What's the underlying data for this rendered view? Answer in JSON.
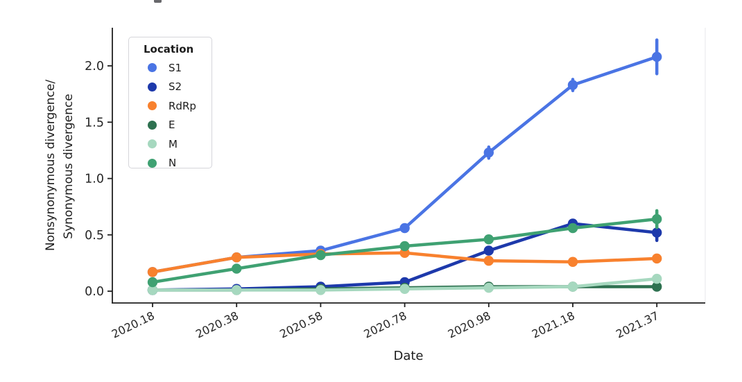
{
  "chart_data": {
    "type": "line",
    "title": "",
    "xlabel": "Date",
    "ylabel_lines": [
      "Nonsynonymous divergence/",
      "Synonymous divergence"
    ],
    "legend_title": "Location",
    "legend_position": "upper left",
    "grid": false,
    "x_tick_labels": [
      "2020.18",
      "2020.38",
      "2020.58",
      "2020.78",
      "2020.98",
      "2021.18",
      "2021.37"
    ],
    "x_tick_rotation_deg": 26,
    "y_tick_labels": [
      "0.0",
      "0.5",
      "1.0",
      "1.5",
      "2.0"
    ],
    "ylim": [
      -0.11,
      2.34
    ],
    "marker": "circle",
    "series": [
      {
        "name": "S1",
        "color": "#4a74e4",
        "values": [
          0.17,
          0.3,
          0.36,
          0.56,
          1.23,
          1.83,
          2.08
        ],
        "errors": [
          null,
          null,
          null,
          null,
          0.05,
          0.05,
          0.15
        ]
      },
      {
        "name": "S2",
        "color": "#1d39ab",
        "values": [
          0.01,
          0.02,
          0.04,
          0.08,
          0.36,
          0.6,
          0.52
        ],
        "errors": [
          null,
          null,
          null,
          null,
          null,
          null,
          0.07
        ]
      },
      {
        "name": "RdRp",
        "color": "#f8812e",
        "values": [
          0.17,
          0.3,
          0.33,
          0.34,
          0.27,
          0.26,
          0.29
        ],
        "errors": [
          null,
          null,
          null,
          null,
          null,
          null,
          null
        ]
      },
      {
        "name": "E",
        "color": "#2e7150",
        "values": [
          0.01,
          0.01,
          0.02,
          0.03,
          0.04,
          0.04,
          0.04
        ],
        "errors": [
          null,
          null,
          null,
          null,
          null,
          null,
          null
        ]
      },
      {
        "name": "M",
        "color": "#a6d8bf",
        "values": [
          0.01,
          0.01,
          0.01,
          0.02,
          0.03,
          0.04,
          0.11
        ],
        "errors": [
          null,
          null,
          null,
          null,
          null,
          null,
          null
        ]
      },
      {
        "name": "N",
        "color": "#3fa172",
        "values": [
          0.08,
          0.2,
          0.32,
          0.4,
          0.46,
          0.56,
          0.64
        ],
        "errors": [
          null,
          null,
          null,
          null,
          null,
          null,
          0.075
        ]
      }
    ],
    "colors": {
      "axis_spine": "#1f1f1f",
      "faint_spine": "#ebebee",
      "tick_text": "#262626"
    }
  }
}
